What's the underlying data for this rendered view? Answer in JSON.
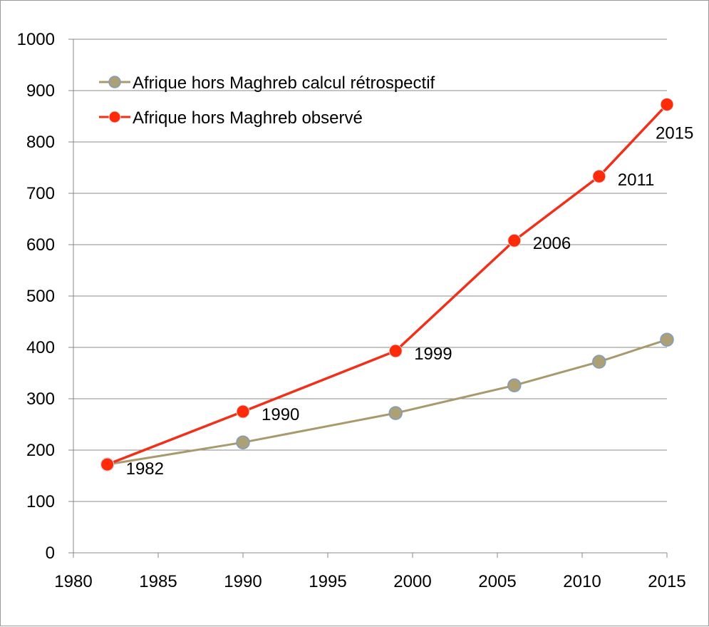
{
  "chart_data": {
    "type": "line",
    "title": "",
    "xlabel": "",
    "ylabel": "",
    "xlim": [
      1980,
      2015
    ],
    "ylim": [
      0,
      1000
    ],
    "x_ticks": [
      1980,
      1985,
      1990,
      1995,
      2000,
      2005,
      2010,
      2015
    ],
    "y_ticks": [
      0,
      100,
      200,
      300,
      400,
      500,
      600,
      700,
      800,
      900,
      1000
    ],
    "grid": {
      "horizontal": true,
      "vertical": false
    },
    "legend_position": "top-left",
    "series": [
      {
        "name": "Afrique hors Maghreb calcul rétrospectif",
        "color": "#A89A6C",
        "marker_color": "#ADA074",
        "x": [
          1982,
          1990,
          1999,
          2006,
          2011,
          2015
        ],
        "y": [
          172,
          215,
          272,
          326,
          372,
          415
        ]
      },
      {
        "name": "Afrique hors Maghreb observé",
        "color": "#F0301A",
        "marker_color": "#FF2A0A",
        "x": [
          1982,
          1990,
          1999,
          2006,
          2011,
          2015
        ],
        "y": [
          172,
          275,
          393,
          608,
          733,
          873
        ],
        "point_labels": [
          "1982",
          "1990",
          "1999",
          "2006",
          "2011",
          "2015"
        ]
      }
    ]
  }
}
